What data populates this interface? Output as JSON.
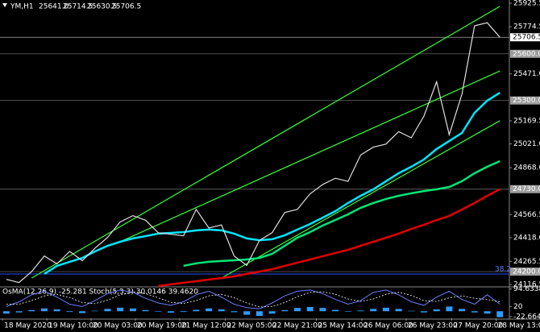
{
  "chart_data": {
    "type": "line",
    "symbol": "YM,H1",
    "quote": [
      "25641.0",
      "25714.5",
      "25630.5",
      "25706.5"
    ],
    "indicator_title": "OsMA(12,26,9) -25.281  Stoch(5,3,3) 30.0146 39.4620",
    "xlim": [
      -0.5,
      39.75
    ],
    "ylim": [
      24107,
      25946
    ],
    "yticks": [
      25925.5,
      25774.5,
      {
        "value": 25471,
        "label": "25471.0"
      },
      25169.5,
      {
        "value": 25021,
        "label": "25021.0"
      },
      {
        "value": 24868,
        "label": "24868.0"
      },
      24566.5,
      {
        "value": 24418,
        "label": "24418.0"
      },
      24265.5,
      24116.5
    ],
    "xticks": [
      {
        "value": -0.3,
        "label": "18 May 2020"
      },
      {
        "value": 3.2,
        "label": "19 May 10:00"
      },
      {
        "value": 6.7,
        "label": "20 May 03:00"
      },
      {
        "value": 10.2,
        "label": "20 May 19:00"
      },
      {
        "value": 13.7,
        "label": "21 May 12:00"
      },
      {
        "value": 17.3,
        "label": "22 May 05:00"
      },
      {
        "value": 20.9,
        "label": "22 May 21:00"
      },
      {
        "value": 24.5,
        "label": "25 May 14:00"
      },
      {
        "value": 28.1,
        "label": "26 May 06:00"
      },
      {
        "value": 31.6,
        "label": "26 May 23:00"
      },
      {
        "value": 35.2,
        "label": "27 May 20:00"
      },
      {
        "value": 38.7,
        "label": "28 May 13:00"
      }
    ],
    "price": {
      "color": "#e0e0e0",
      "values": [
        24150,
        24130,
        24200,
        24300,
        24250,
        24330,
        24270,
        24350,
        24420,
        24520,
        24560,
        24530,
        24450,
        24440,
        24430,
        24600,
        24480,
        24500,
        24300,
        24240,
        24400,
        24450,
        24580,
        24600,
        24700,
        24760,
        24800,
        24780,
        24950,
        25000,
        25020,
        25100,
        25060,
        25200,
        25420,
        25080,
        25340,
        25780,
        25800,
        25706.5
      ]
    },
    "series": [
      {
        "color": "#00e5ff",
        "values": [
          null,
          null,
          null,
          24185,
          24237,
          24263,
          24288,
          24330,
          24366,
          24392,
          24413,
          24428,
          24444,
          24449,
          24454,
          24465,
          24470,
          24465,
          24444,
          24413,
          24402,
          24408,
          24434,
          24470,
          24506,
          24547,
          24589,
          24641,
          24687,
          24729,
          24781,
          24832,
          24874,
          24921,
          24988,
          25040,
          25091,
          25221,
          25299,
          25350
        ]
      },
      {
        "color": "#00e676",
        "values": [
          null,
          null,
          null,
          null,
          null,
          null,
          null,
          null,
          null,
          null,
          null,
          null,
          null,
          null,
          24237,
          24253,
          24263,
          24268,
          24273,
          24278,
          24288,
          24314,
          24366,
          24418,
          24454,
          24496,
          24532,
          24568,
          24610,
          24641,
          24667,
          24687,
          24703,
          24718,
          24729,
          24744,
          24781,
          24832,
          24874,
          24910
        ]
      },
      {
        "color": "#e00000",
        "values": [
          null,
          null,
          null,
          null,
          null,
          null,
          null,
          null,
          null,
          null,
          null,
          null,
          24107,
          24118,
          24128,
          24138,
          24149,
          24159,
          24169,
          24185,
          24200,
          24216,
          24237,
          24258,
          24278,
          24299,
          24320,
          24340,
          24366,
          24392,
          24418,
          24444,
          24475,
          24501,
          24532,
          24558,
          24599,
          24641,
          24687,
          24729
        ]
      }
    ],
    "channels": [
      {
        "color": "#33ff33",
        "x": [
          2,
          39
        ],
        "values": [
          24159,
          25905
        ]
      },
      {
        "color": "#33ff33",
        "x": [
          9,
          39
        ],
        "values": [
          24392,
          25490
        ]
      },
      {
        "color": "#33ff33",
        "x": [
          17,
          39
        ],
        "values": [
          24159,
          25170
        ]
      }
    ],
    "levels": [
      {
        "value": 25600,
        "label": "25600.0"
      },
      {
        "value": 25300,
        "label": "25300.0"
      },
      {
        "value": 24730,
        "label": "24730.0"
      },
      {
        "value": 24200,
        "label": "24200.0"
      }
    ],
    "current": {
      "value": 25706.5,
      "label": "25706.5"
    },
    "fib": {
      "level": 38.2,
      "price": 24185
    },
    "sub_ylim": [
      -30,
      100
    ],
    "sub_yticks": [
      94.6338,
      20,
      -22.664
    ],
    "osma": {
      "color": "#2f9bff",
      "values": [
        -10,
        -5,
        5,
        12,
        8,
        -3,
        -8,
        2,
        10,
        15,
        12,
        5,
        -2,
        -6,
        -3,
        6,
        12,
        8,
        -4,
        -15,
        -20,
        -10,
        5,
        14,
        18,
        14,
        6,
        -2,
        3,
        10,
        15,
        10,
        2,
        -5,
        8,
        20,
        10,
        -5,
        -10,
        -25.281
      ]
    },
    "stoch_main": {
      "color": "#6f7bff",
      "values": [
        20,
        40,
        70,
        85,
        60,
        30,
        20,
        45,
        75,
        90,
        80,
        55,
        35,
        25,
        40,
        70,
        85,
        60,
        30,
        15,
        10,
        35,
        65,
        85,
        90,
        75,
        50,
        30,
        45,
        80,
        90,
        70,
        40,
        25,
        60,
        85,
        50,
        30,
        70,
        30.0146
      ]
    },
    "stoch_signal": {
      "color": "#ffffff",
      "values": [
        30,
        30,
        45,
        65,
        72,
        58,
        37,
        32,
        47,
        70,
        82,
        75,
        57,
        38,
        33,
        45,
        65,
        72,
        58,
        35,
        18,
        20,
        37,
        62,
        80,
        83,
        72,
        52,
        42,
        52,
        72,
        80,
        67,
        45,
        42,
        57,
        65,
        55,
        50,
        39.462
      ]
    }
  }
}
